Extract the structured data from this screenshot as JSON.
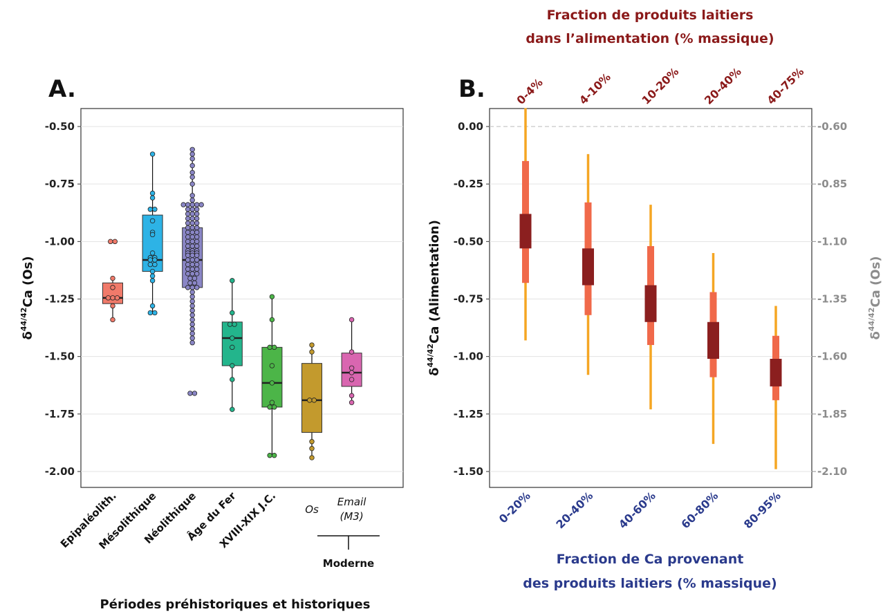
{
  "chart_data": [
    {
      "type": "box",
      "panel_label": "A.",
      "xlabel": "Périodes préhistoriques et historiques",
      "ylabel": "δ44/42Ca (Os)",
      "ylim": [
        -2.0,
        -0.5
      ],
      "yticks": [
        "-0.50",
        "-0.75",
        "-1.00",
        "-1.25",
        "-1.50",
        "-1.75",
        "-2.00"
      ],
      "group_label": "Moderne",
      "categories": [
        {
          "name": "Epipaléolith.",
          "color": "#f07a6a",
          "italic": false,
          "q1": -1.27,
          "median": -1.245,
          "q3": -1.18,
          "whisker_low": -1.34,
          "whisker_high": -1.16,
          "points": [
            -1.0,
            -1.0,
            -1.16,
            -1.2,
            -1.245,
            -1.245,
            -1.245,
            -1.28,
            -1.34
          ]
        },
        {
          "name": "Mésolithique",
          "color": "#2db3e6",
          "italic": false,
          "q1": -1.13,
          "median": -1.08,
          "q3": -0.885,
          "whisker_low": -1.31,
          "whisker_high": -0.62,
          "points": [
            -0.62,
            -0.79,
            -0.81,
            -0.86,
            -0.86,
            -0.91,
            -0.96,
            -0.97,
            -1.05,
            -1.07,
            -1.07,
            -1.08,
            -1.08,
            -1.1,
            -1.1,
            -1.13,
            -1.15,
            -1.17,
            -1.28,
            -1.31,
            -1.31
          ]
        },
        {
          "name": "Néolithique",
          "color": "#8a86c6",
          "italic": false,
          "q1": -1.2,
          "median": -1.08,
          "q3": -0.94,
          "whisker_low": -1.44,
          "whisker_high": -0.6,
          "points": [
            -0.6,
            -0.62,
            -0.64,
            -0.67,
            -0.7,
            -0.72,
            -0.75,
            -0.8,
            -0.82,
            -0.84,
            -0.84,
            -0.84,
            -0.84,
            -0.84,
            -0.86,
            -0.86,
            -0.86,
            -0.88,
            -0.88,
            -0.88,
            -0.9,
            -0.9,
            -0.9,
            -0.92,
            -0.92,
            -0.92,
            -0.94,
            -0.94,
            -0.94,
            -0.96,
            -0.96,
            -0.96,
            -0.98,
            -0.98,
            -0.98,
            -1.0,
            -1.0,
            -1.0,
            -1.02,
            -1.02,
            -1.02,
            -1.04,
            -1.04,
            -1.04,
            -1.05,
            -1.05,
            -1.05,
            -1.06,
            -1.06,
            -1.06,
            -1.08,
            -1.08,
            -1.08,
            -1.1,
            -1.1,
            -1.1,
            -1.12,
            -1.12,
            -1.12,
            -1.14,
            -1.14,
            -1.14,
            -1.16,
            -1.16,
            -1.18,
            -1.18,
            -1.2,
            -1.2,
            -1.2,
            -1.22,
            -1.24,
            -1.26,
            -1.28,
            -1.3,
            -1.32,
            -1.34,
            -1.36,
            -1.38,
            -1.4,
            -1.42,
            -1.44,
            -1.66,
            -1.66
          ]
        },
        {
          "name": "Âge du Fer",
          "color": "#23b58c",
          "italic": false,
          "q1": -1.54,
          "median": -1.42,
          "q3": -1.35,
          "whisker_low": -1.73,
          "whisker_high": -1.17,
          "points": [
            -1.17,
            -1.31,
            -1.36,
            -1.36,
            -1.42,
            -1.46,
            -1.54,
            -1.6,
            -1.73
          ]
        },
        {
          "name": "XVIII-XIX J.C.",
          "color": "#4cb548",
          "italic": false,
          "q1": -1.72,
          "median": -1.615,
          "q3": -1.46,
          "whisker_low": -1.93,
          "whisker_high": -1.24,
          "points": [
            -1.24,
            -1.34,
            -1.46,
            -1.46,
            -1.54,
            -1.615,
            -1.7,
            -1.72,
            -1.72,
            -1.93,
            -1.93
          ]
        },
        {
          "name": "Os",
          "color": "#c39a2d",
          "italic": true,
          "q1": -1.83,
          "median": -1.69,
          "q3": -1.53,
          "whisker_low": -1.94,
          "whisker_high": -1.45,
          "points": [
            -1.45,
            -1.48,
            -1.69,
            -1.69,
            -1.87,
            -1.9,
            -1.94
          ]
        },
        {
          "name": "Email (M3)",
          "color": "#d966b0",
          "italic": true,
          "q1": -1.63,
          "median": -1.57,
          "q3": -1.485,
          "whisker_low": -1.7,
          "whisker_high": -1.34,
          "points": [
            -1.34,
            -1.48,
            -1.55,
            -1.57,
            -1.6,
            -1.67,
            -1.7
          ]
        }
      ]
    },
    {
      "type": "interval",
      "panel_label": "B.",
      "ylabel": "δ44/42Ca (Alimentation)",
      "ylim": [
        -1.5,
        0.0
      ],
      "yticks": [
        "0.00",
        "-0.25",
        "-0.50",
        "-0.75",
        "-1.00",
        "-1.25",
        "-1.50"
      ],
      "y2label": "δ44/42Ca (Os)",
      "y2ticks": [
        "-0.60",
        "-0.85",
        "-1.10",
        "-1.35",
        "-1.60",
        "-1.85",
        "-2.10"
      ],
      "xlabel": "Fraction de Ca provenant des produits laitiers (% massique)",
      "xlabel_lines": [
        "Fraction de Ca provenant",
        "des produits laitiers (% massique)"
      ],
      "top_label_lines": [
        "Fraction de produits laitiers",
        "dans l’alimentation (% massique)"
      ],
      "categories": [
        "0-20%",
        "20-40%",
        "40-60%",
        "60-80%",
        "80-95%"
      ],
      "top_categories": [
        "0-4%",
        "4-10%",
        "10-20%",
        "20-40%",
        "40-75%"
      ],
      "colors": {
        "outer": "#f5a623",
        "middle": "#f0694a",
        "inner": "#8b1f1f",
        "top_axis": "#8b1a1a",
        "bottom_axis": "#2a3a8c"
      },
      "series": [
        {
          "category": "0-20%",
          "outer": [
            -0.93,
            0.08
          ],
          "middle": [
            -0.68,
            -0.15
          ],
          "inner": [
            -0.53,
            -0.38
          ]
        },
        {
          "category": "20-40%",
          "outer": [
            -1.08,
            -0.12
          ],
          "middle": [
            -0.82,
            -0.33
          ],
          "inner": [
            -0.69,
            -0.53
          ]
        },
        {
          "category": "40-60%",
          "outer": [
            -1.23,
            -0.34
          ],
          "middle": [
            -0.95,
            -0.52
          ],
          "inner": [
            -0.85,
            -0.69
          ]
        },
        {
          "category": "60-80%",
          "outer": [
            -1.38,
            -0.55
          ],
          "middle": [
            -1.09,
            -0.72
          ],
          "inner": [
            -1.01,
            -0.85
          ]
        },
        {
          "category": "80-95%",
          "outer": [
            -1.49,
            -0.78
          ],
          "middle": [
            -1.19,
            -0.91
          ],
          "inner": [
            -1.13,
            -1.01
          ]
        }
      ]
    }
  ]
}
